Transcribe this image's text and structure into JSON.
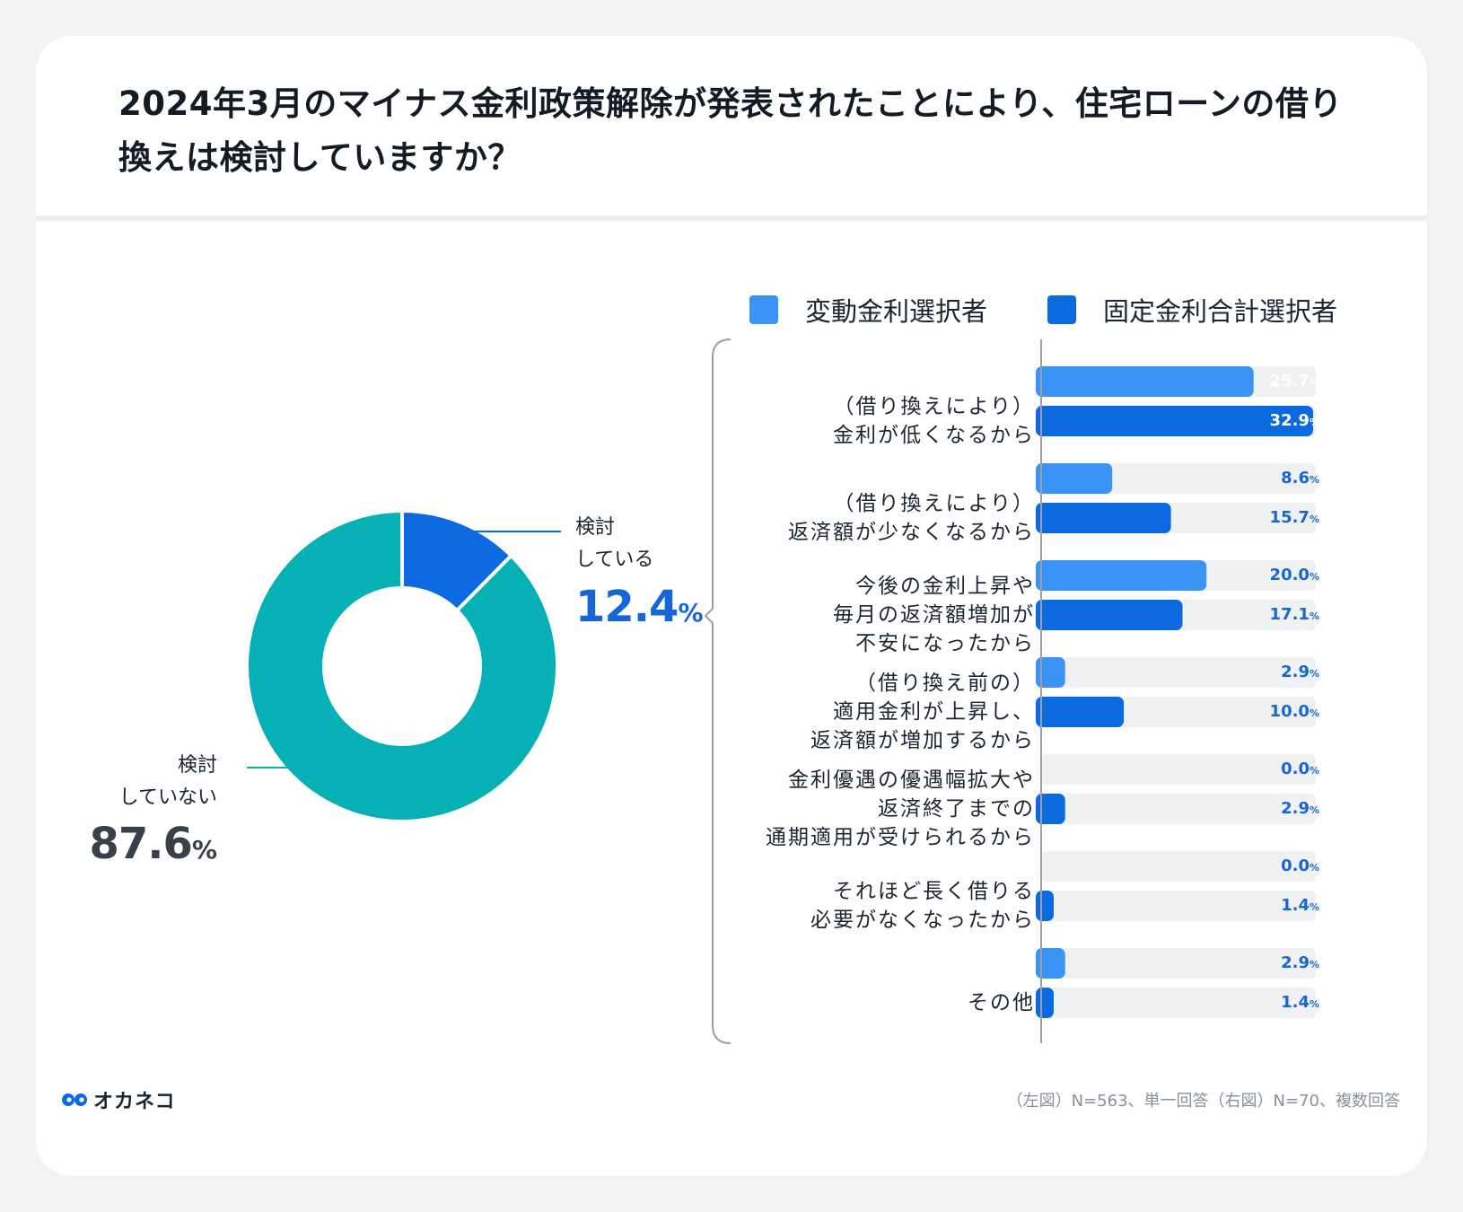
{
  "title": "2024年3月のマイナス金利政策解除が発表されたことにより、住宅ローンの借り換えは検討していますか？",
  "colors": {
    "variable": "#3b94f5",
    "fixed": "#0c6ae0",
    "track": "#f0f1f3",
    "pie_considering": "#0c6ae0",
    "pie_not": "#05b1b4",
    "pct_considering": "#1566d8",
    "pct_not": "#3a404a"
  },
  "footer": {
    "brand": "オカネコ",
    "note": "（左図）N=563、単一回答（右図）N=70、複数回答"
  },
  "chart_data": [
    {
      "type": "pie",
      "variant": "donut",
      "slices": [
        {
          "label_line1": "検討",
          "label_line2": "している",
          "value": 12.4,
          "value_text": "12.4",
          "unit": "%"
        },
        {
          "label_line1": "検討",
          "label_line2": "していない",
          "value": 87.6,
          "value_text": "87.6",
          "unit": "%"
        }
      ]
    },
    {
      "type": "bar",
      "orientation": "horizontal",
      "legend": [
        "変動金利選択者",
        "固定金利合計選択者"
      ],
      "unit": "%",
      "xlim": [
        0,
        32.9
      ],
      "categories": [
        [
          "（借り換えにより）",
          "金利が低くなるから"
        ],
        [
          "（借り換えにより）",
          "返済額が少なくなるから"
        ],
        [
          "今後の金利上昇や",
          "毎月の返済額増加が",
          "不安になったから"
        ],
        [
          "（借り換え前の）",
          "適用金利が上昇し、",
          "返済額が増加するから"
        ],
        [
          "金利優遇の優遇幅拡大や",
          "返済終了までの",
          "通期適用が受けられるから"
        ],
        [
          "それほど長く借りる",
          "必要がなくなったから"
        ],
        [
          "その他"
        ]
      ],
      "series": [
        {
          "name": "変動金利選択者",
          "values": [
            25.7,
            8.6,
            20.0,
            2.9,
            0.0,
            0.0,
            2.9
          ],
          "labels": [
            "25.7",
            "8.6",
            "20.0",
            "2.9",
            "0.0",
            "0.0",
            "2.9"
          ]
        },
        {
          "name": "固定金利合計選択者",
          "values": [
            32.9,
            15.7,
            17.1,
            10.0,
            2.9,
            1.4,
            1.4
          ],
          "labels": [
            "32.9",
            "15.7",
            "17.1",
            "10.0",
            "2.9",
            "1.4",
            "1.4"
          ]
        }
      ]
    }
  ]
}
